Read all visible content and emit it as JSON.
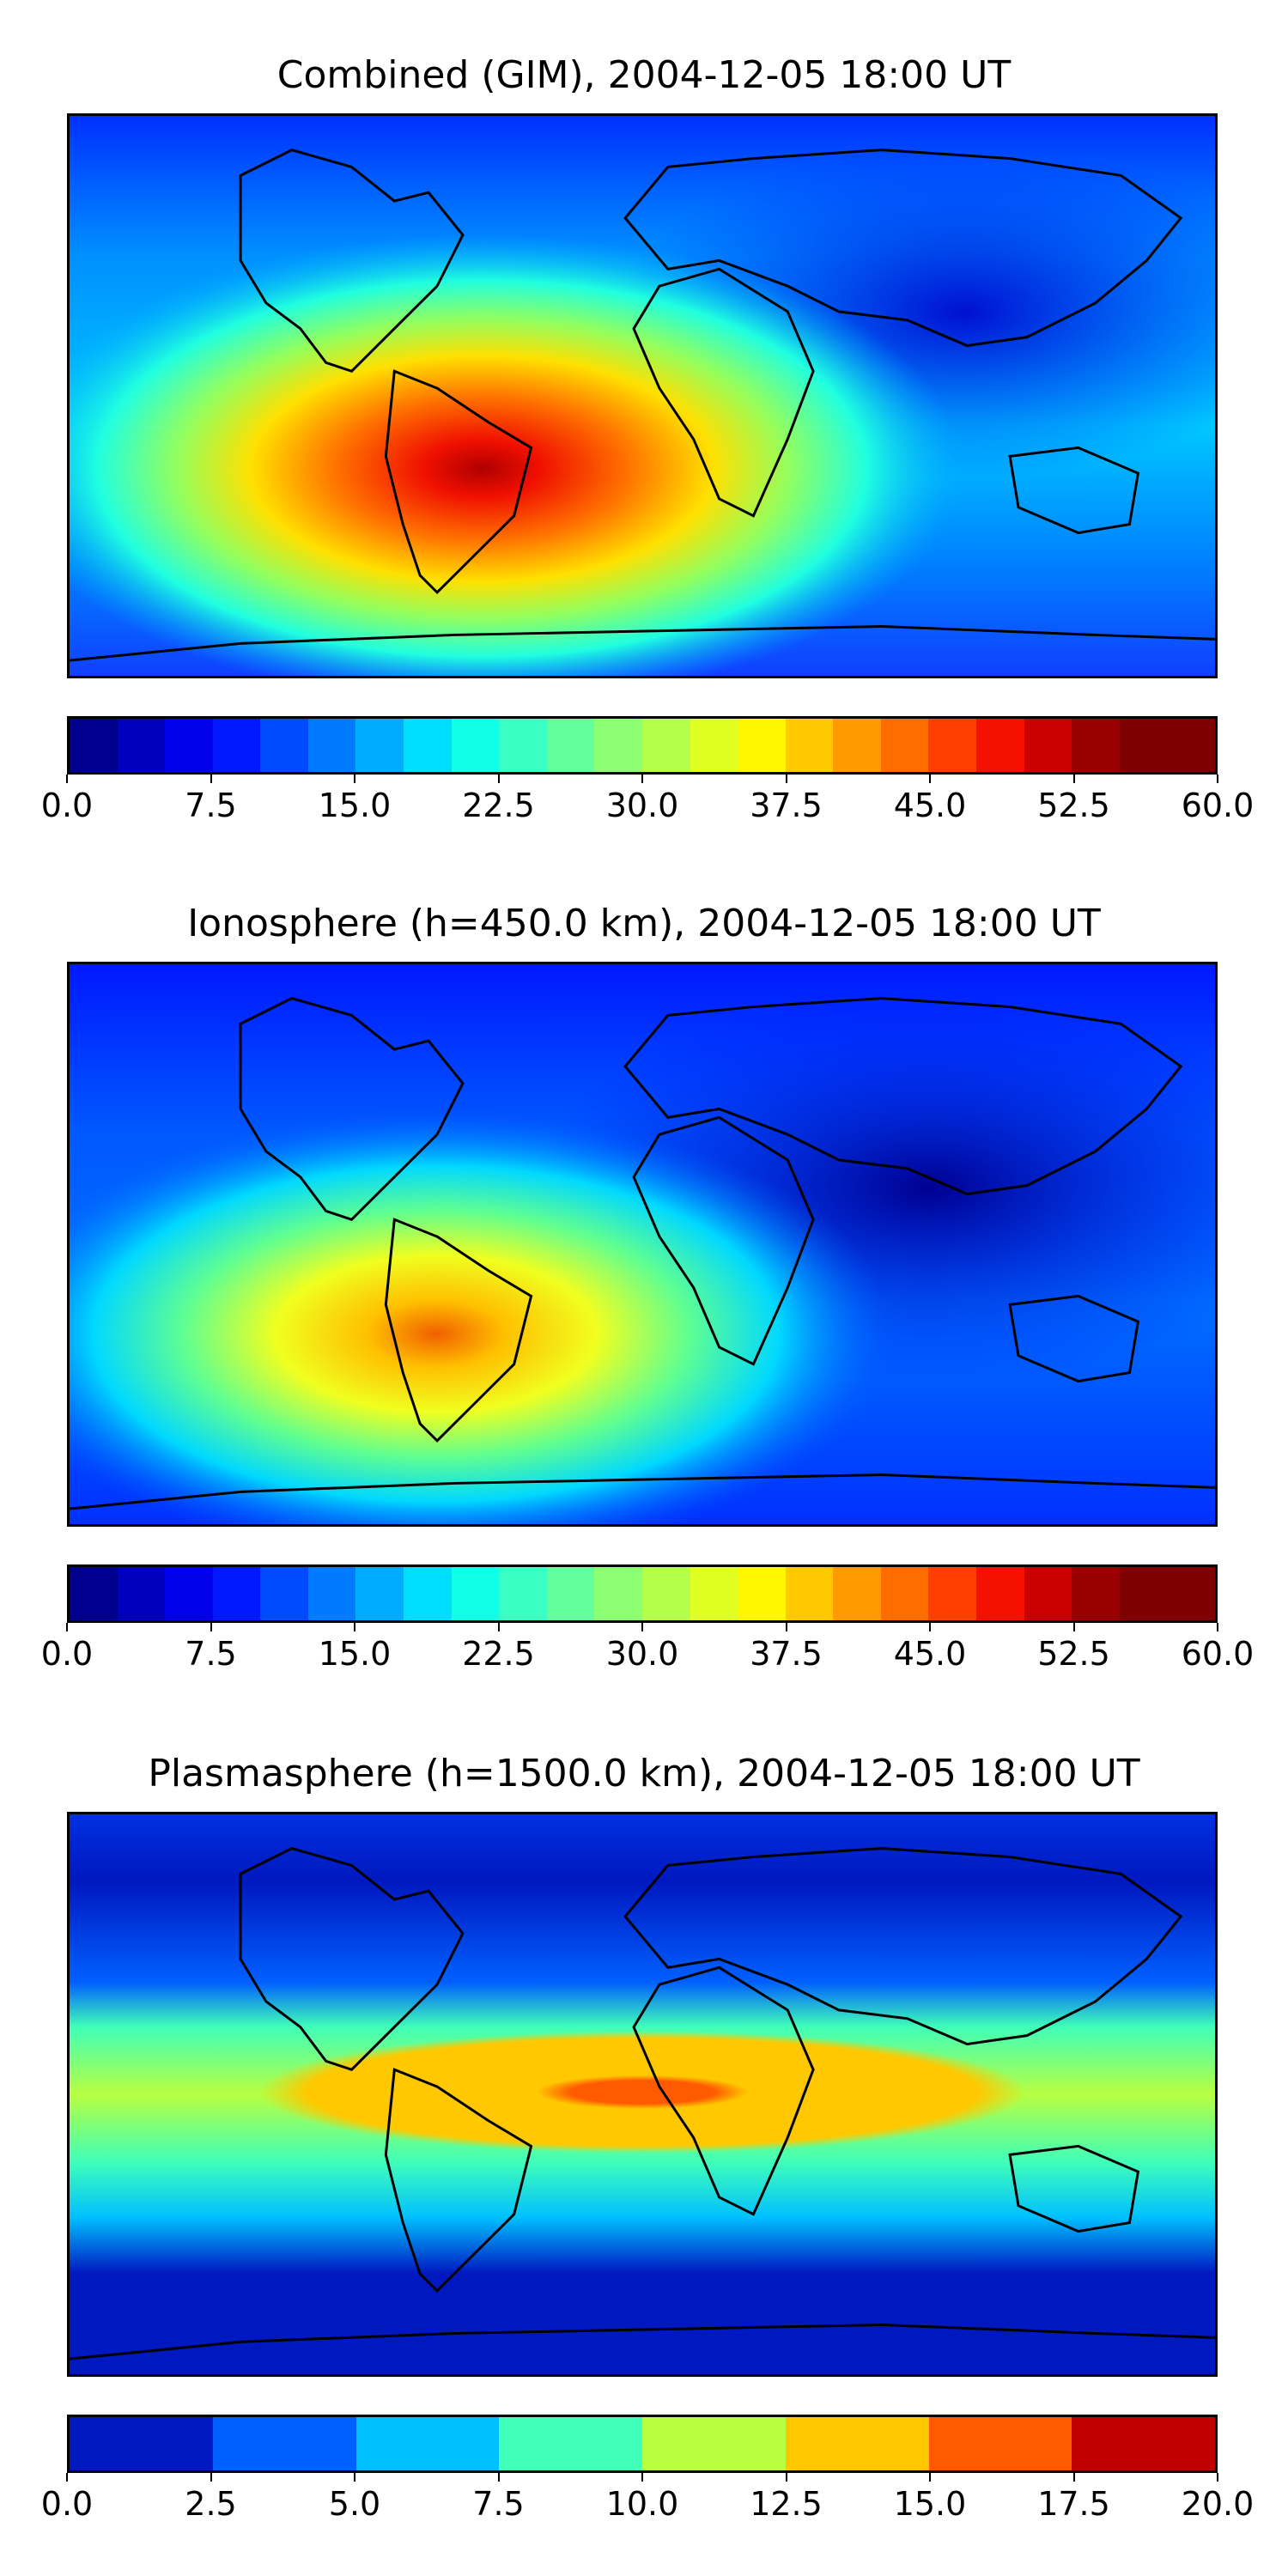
{
  "panels": [
    {
      "title": "Combined (GIM), 2004-12-05 18:00 UT",
      "colorbar": {
        "min": 0.0,
        "max": 60.0,
        "step": 2.5,
        "tick_labels": [
          "0.0",
          "7.5",
          "15.0",
          "22.5",
          "30.0",
          "37.5",
          "45.0",
          "52.5",
          "60.0"
        ],
        "colors": [
          "#00008f",
          "#0000bd",
          "#0000ea",
          "#0019ff",
          "#004aff",
          "#007bff",
          "#00acff",
          "#00ddff",
          "#11ffe6",
          "#3aff c5",
          "#63ff9c",
          "#8cff73",
          "#b5ff4a",
          "#deff21",
          "#fff600",
          "#ffc800",
          "#ff9a00",
          "#ff6c00",
          "#ff3e00",
          "#f51000",
          "#c80000",
          "#9a0000",
          "#7f0000",
          "#7f0000"
        ]
      },
      "features": [
        "jet colormap",
        "peak over South America / South Atlantic",
        "low values over Asia and Pacific"
      ]
    },
    {
      "title": "Ionosphere  (h=450.0 km), 2004-12-05 18:00 UT",
      "colorbar": {
        "min": 0.0,
        "max": 60.0,
        "step": 2.5,
        "tick_labels": [
          "0.0",
          "7.5",
          "15.0",
          "22.5",
          "30.0",
          "37.5",
          "45.0",
          "52.5",
          "60.0"
        ]
      },
      "features": [
        "jet colormap",
        "peak over southern South America",
        "very low values over Asia"
      ]
    },
    {
      "title": "Plasmasphere (h=1500.0 km), 2004-12-05 18:00 UT",
      "colorbar": {
        "min": 0.0,
        "max": 20.0,
        "step": 2.5,
        "tick_labels": [
          "0.0",
          "2.5",
          "5.0",
          "7.5",
          "10.0",
          "12.5",
          "15.0",
          "17.5",
          "20.0"
        ],
        "colors": [
          "#0018c0",
          "#0060ff",
          "#00c0ff",
          "#40ffb8",
          "#b8ff40",
          "#ffc800",
          "#ff5a00",
          "#c00000"
        ]
      },
      "features": [
        "jet colormap",
        "equatorial band maximum over Africa",
        "low values at high latitudes"
      ]
    }
  ]
}
